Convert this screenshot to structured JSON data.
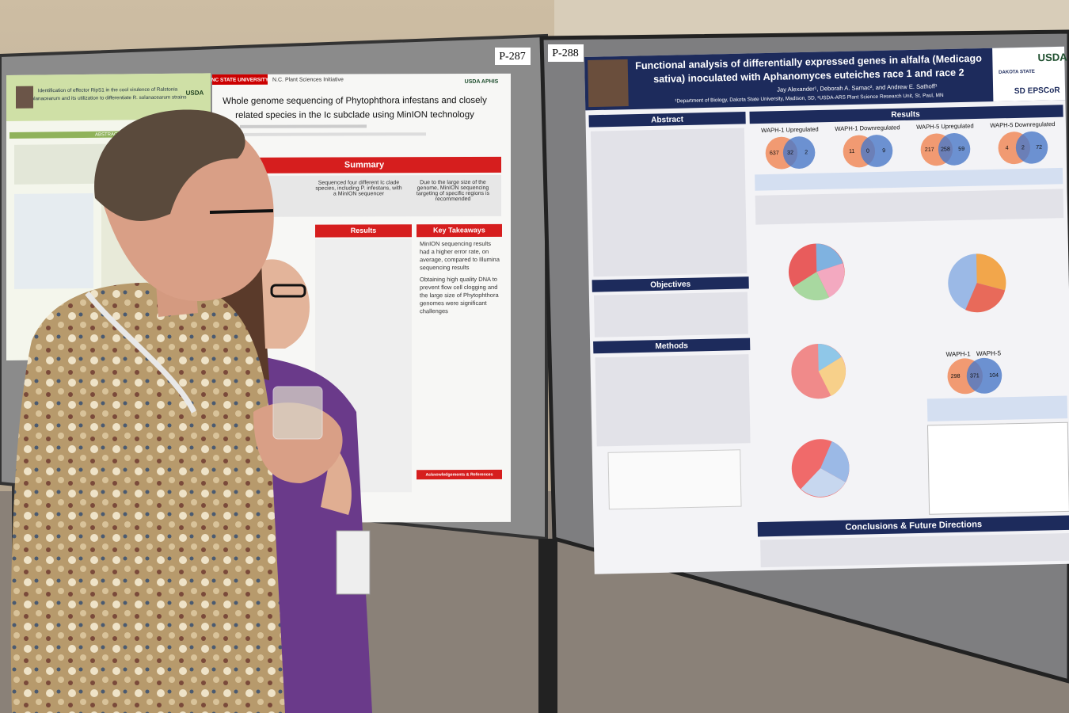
{
  "boards": {
    "middle": "P-287",
    "right": "P-288"
  },
  "left_poster": {
    "title_lines": [
      "Identification of effector RipS1 in the cool virulence of Ralstonia",
      "solanacearum and its utilization to differentiate R. solanacearum strains"
    ],
    "section": "ABSTRACT",
    "logo": "USDA"
  },
  "middle_poster": {
    "university": "NC STATE UNIVERSITY",
    "initiative": "N.C. Plant Sciences Initiative",
    "title_lines": [
      "Whole genome sequencing of Phytophthora infestans and closely",
      "related species in the Ic subclade using MinION technology"
    ],
    "logo": "USDA APHIS",
    "summary": "Summary",
    "summary_items": [
      "Sequenced four different Ic clade species, including P. infestans, with a MinION sequencer",
      "Due to the large size of the genome, MinION sequencing targeting of specific regions is recommended"
    ],
    "results": "Results",
    "takeaways": "Key Takeaways",
    "takeaway_items": [
      "MinION sequencing results had a higher error rate, on average, compared to Illumina sequencing results",
      "Obtaining high quality DNA to prevent flow cell clogging and the large size of Phytophthora genomes were significant challenges"
    ],
    "acknowledgements": "Acknowledgements & References"
  },
  "right_poster": {
    "title_lines": [
      "Functional analysis of differentially expressed genes in alfalfa (Medicago",
      "sativa) inoculated with Aphanomyces euteiches race 1 and race 2"
    ],
    "authors": "Jay Alexander¹, Deborah A. Samac², and Andrew E. Sathoff¹",
    "affiliation": "¹Department of Biology, Dakota State University, Madison, SD, ²USDA-ARS Plant Science Research Unit, St. Paul, MN",
    "logos": [
      "DAKOTA STATE",
      "USDA",
      "SD EPSCoR"
    ],
    "sections": {
      "abstract": "Abstract",
      "objectives": "Objectives",
      "methods": "Methods",
      "results": "Results",
      "conclusions": "Conclusions & Future Directions"
    },
    "venns": [
      {
        "label": "WAPH-1 Upregulated",
        "numbers": [
          "637",
          "32",
          "2"
        ]
      },
      {
        "label": "WAPH-1 Downregulated",
        "numbers": [
          "11",
          "0",
          "9"
        ]
      },
      {
        "label": "WAPH-5 Upregulated",
        "numbers": [
          "217",
          "258",
          "59"
        ]
      },
      {
        "label": "WAPH-5 Downregulated",
        "numbers": [
          "4",
          "2",
          "72"
        ]
      }
    ],
    "venn_pair": {
      "labels": [
        "WAPH-1",
        "WAPH-5"
      ],
      "numbers": [
        "298",
        "371",
        "104"
      ]
    }
  }
}
